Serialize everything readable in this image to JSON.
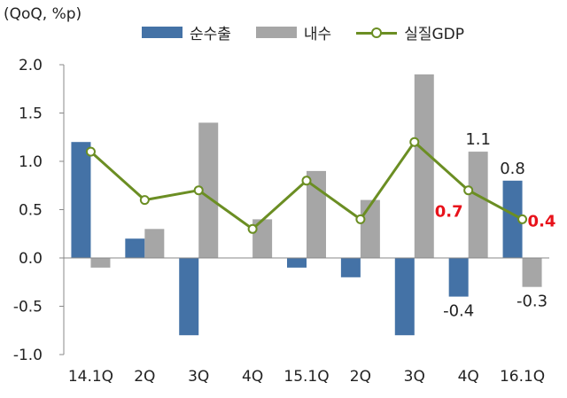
{
  "unit_label": "(QoQ, %p)",
  "legend": [
    {
      "label": "순수출",
      "kind": "bar",
      "color": "#4472a6"
    },
    {
      "label": "내수",
      "kind": "bar",
      "color": "#a6a6a6"
    },
    {
      "label": "실질GDP",
      "kind": "line",
      "color": "#6b8e23"
    }
  ],
  "chart_data": {
    "type": "bar",
    "categories": [
      "14.1Q",
      "2Q",
      "3Q",
      "4Q",
      "15.1Q",
      "2Q",
      "3Q",
      "4Q",
      "16.1Q"
    ],
    "series": [
      {
        "name": "순수출",
        "type": "bar",
        "color": "#4472a6",
        "values": [
          1.2,
          0.2,
          -0.8,
          0.0,
          -0.1,
          -0.2,
          -0.8,
          -0.4,
          0.8
        ]
      },
      {
        "name": "내수",
        "type": "bar",
        "color": "#a6a6a6",
        "values": [
          -0.1,
          0.3,
          1.4,
          0.4,
          0.9,
          0.6,
          1.9,
          1.1,
          -0.3
        ]
      },
      {
        "name": "실질GDP",
        "type": "line",
        "color": "#6b8e23",
        "values": [
          1.1,
          0.6,
          0.7,
          0.3,
          0.8,
          0.4,
          1.2,
          0.7,
          0.4
        ]
      }
    ],
    "ylim": [
      -1.0,
      2.0
    ],
    "yticks": [
      "2.0",
      "1.5",
      "1.0",
      "0.5",
      "0.0",
      "-0.5",
      "-1.0"
    ],
    "grid": false,
    "legend_position": "top",
    "annotations": [
      {
        "text": "1.1",
        "category": "4Q",
        "series": "내수",
        "color": "#222222"
      },
      {
        "text": "-0.4",
        "category": "4Q",
        "series": "순수출",
        "color": "#222222"
      },
      {
        "text": "0.7",
        "category": "4Q",
        "series": "실질GDP",
        "color": "#e8121b"
      },
      {
        "text": "0.8",
        "category": "16.1Q",
        "series": "순수출",
        "color": "#222222"
      },
      {
        "text": "-0.3",
        "category": "16.1Q",
        "series": "내수",
        "color": "#222222"
      },
      {
        "text": "0.4",
        "category": "16.1Q",
        "series": "실질GDP",
        "color": "#e8121b"
      }
    ]
  }
}
